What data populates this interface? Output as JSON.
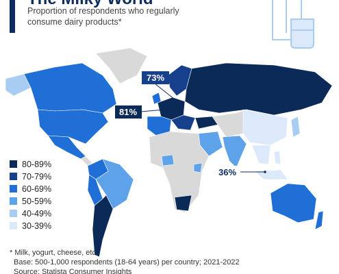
{
  "header": {
    "title": "The Milky World",
    "subtitle": [
      "Proportion of respondents who regularly",
      "consume dairy products*"
    ]
  },
  "legend": {
    "items": [
      {
        "label": "80-89%",
        "color": "#0b2a58"
      },
      {
        "label": "70-79%",
        "color": "#163f8c"
      },
      {
        "label": "60-69%",
        "color": "#1f6fd6"
      },
      {
        "label": "50-59%",
        "color": "#5ea3ea"
      },
      {
        "label": "40-49%",
        "color": "#a9ccf2"
      },
      {
        "label": "30-39%",
        "color": "#dbe9fa"
      }
    ]
  },
  "callouts": [
    "73%",
    "81%",
    "36%"
  ],
  "footer": {
    "note": "* Milk, yogurt, cheese, etc.",
    "base": "Base: 500-1,000 respondents (18-64 years) per country; 2021-2022",
    "source": "Source: Statista Consumer Insights"
  }
}
